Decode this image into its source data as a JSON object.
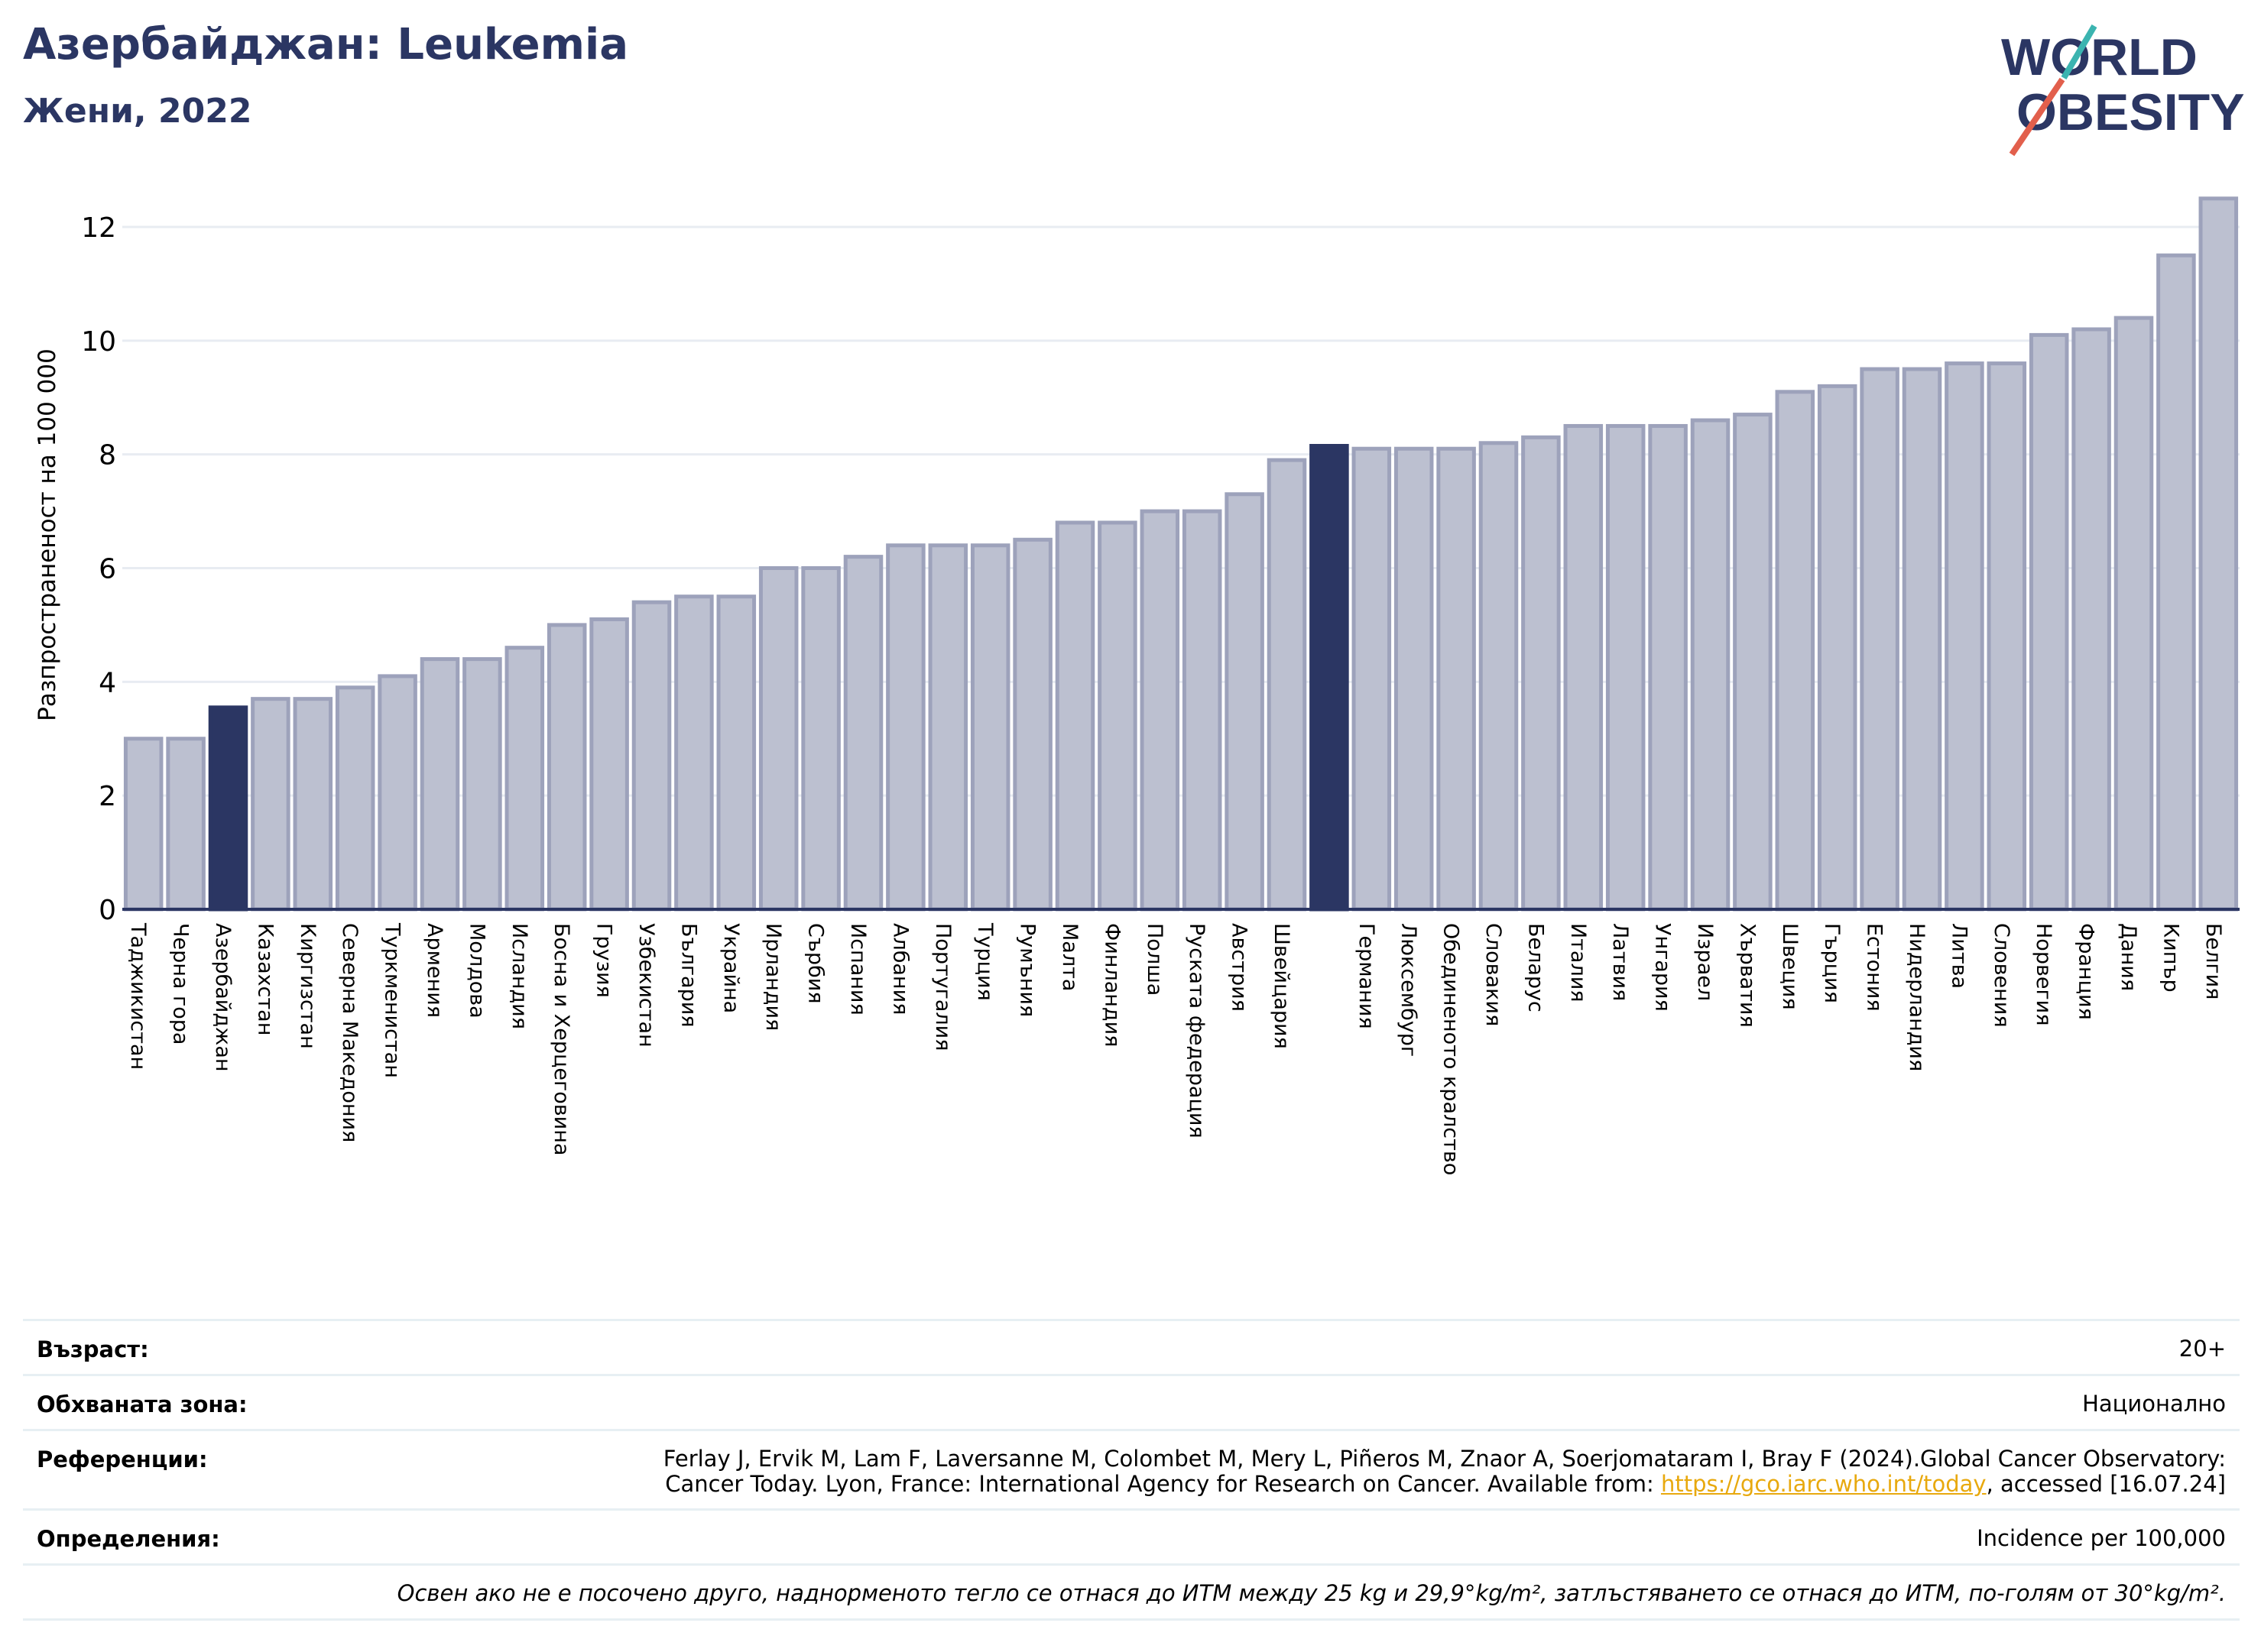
{
  "header": {
    "title": "Азербайджан: Leukemia",
    "subtitle": "Жени, 2022"
  },
  "logo": {
    "line1": "WORLD",
    "line2": "OBESITY"
  },
  "chart_data": {
    "type": "bar",
    "ylabel": "Разпространеност  на 100 000",
    "ylim": [
      0,
      13
    ],
    "yticks": [
      0,
      2,
      4,
      6,
      8,
      10,
      12
    ],
    "grid": true,
    "categories": [
      "Таджикистан",
      "Черна гора",
      "Азербайджан",
      "Казахстан",
      "Киргизстан",
      "Северна Македония",
      "Туркменистан",
      "Армения",
      "Молдова",
      "Исландия",
      "Босна и Херцеговина",
      "Грузия",
      "Узбекистан",
      "България",
      "Украйна",
      "Ирландия",
      "Сърбия",
      "Испания",
      "Албания",
      "Португалия",
      "Турция",
      "Румъния",
      "Малта",
      "Финландия",
      "Полша",
      "Руската федерация",
      "Австрия",
      "Швейцария",
      "",
      "Германия",
      "Люксембург",
      "Обединеното кралство",
      "Словакия",
      "Беларус",
      "Италия",
      "Латвия",
      "Унгария",
      "Израел",
      "Хърватия",
      "Швеция",
      "Гърция",
      "Естония",
      "Нидерландия",
      "Литва",
      "Словения",
      "Норвегия",
      "Франция",
      "Дания",
      "Кипър",
      "Белгия"
    ],
    "values": [
      3.0,
      3.0,
      3.55,
      3.7,
      3.7,
      3.9,
      4.1,
      4.4,
      4.4,
      4.6,
      5.0,
      5.1,
      5.4,
      5.5,
      5.5,
      6.0,
      6.0,
      6.2,
      6.4,
      6.4,
      6.4,
      6.5,
      6.8,
      6.8,
      7.0,
      7.0,
      7.3,
      7.9,
      8.15,
      8.1,
      8.1,
      8.1,
      8.2,
      8.3,
      8.5,
      8.5,
      8.5,
      8.6,
      8.7,
      9.1,
      9.2,
      9.5,
      9.5,
      9.6,
      9.6,
      10.1,
      10.2,
      10.4,
      11.5,
      12.5
    ],
    "highlight": [
      2,
      28
    ],
    "colors": {
      "bar": "#bcc0d0",
      "bar_edge": "#9da2bb",
      "highlight": "#2b3663",
      "grid": "#e8ecf2",
      "axis": "#2b3663"
    }
  },
  "info": {
    "age_label": "Възраст:",
    "age_value": "20+",
    "coverage_label": "Обхваната зона:",
    "coverage_value": "Национално",
    "references_label": "Референции:",
    "references_line1": "Ferlay J, Ervik M, Lam F, Laversanne M, Colombet M, Mery L, Piñeros M, Znaor A, Soerjomataram I, Bray F (2024).Global Cancer Observatory:",
    "references_line2_pre": "Cancer Today. Lyon, France: International Agency for Research on Cancer. Available from: ",
    "references_link": "https://gco.iarc.who.int/today",
    "references_line2_post": ", accessed [16.07.24]",
    "definitions_label": "Определения:",
    "definitions_value": "Incidence per 100,000",
    "note": "Освен ако не е посочено друго, наднорменото тегло се отнася до ИТМ между 25 kg и 29,9°kg/m², затлъстяването се отнася до ИТМ, по-голям от 30°kg/m²."
  }
}
